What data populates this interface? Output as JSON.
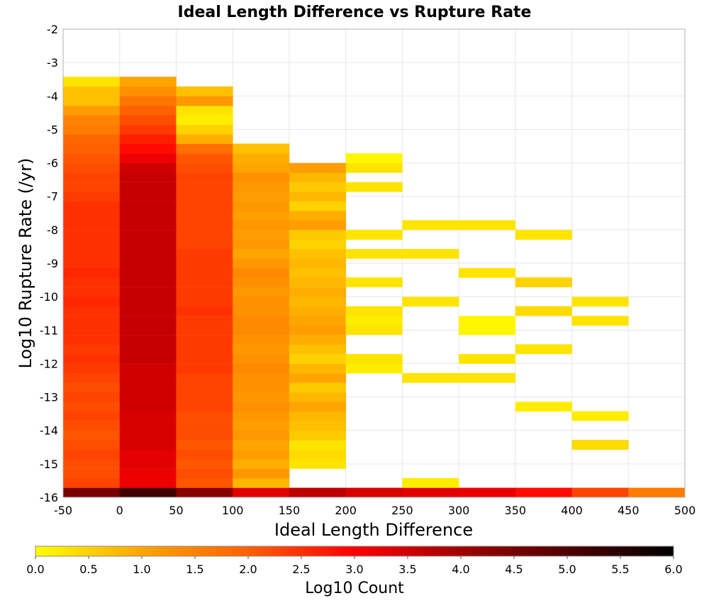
{
  "chart_data": {
    "type": "heatmap",
    "title": "Ideal Length Difference vs Rupture Rate",
    "xlabel": "Ideal Length Difference",
    "ylabel": "Log10 Rupture Rate (/yr)",
    "xlim": [
      -50,
      500
    ],
    "ylim": [
      -16,
      -2
    ],
    "x_ticks": [
      "-50",
      "0",
      "50",
      "100",
      "150",
      "200",
      "250",
      "300",
      "350",
      "400",
      "450",
      "500"
    ],
    "y_ticks": [
      "-2",
      "-3",
      "-4",
      "-5",
      "-6",
      "-7",
      "-8",
      "-9",
      "-10",
      "-11",
      "-12",
      "-13",
      "-14",
      "-15",
      "-16"
    ],
    "grid": true,
    "x_bin_width": 50,
    "y_bin_height": 0.285,
    "colorbar": {
      "label": "Log10 Count",
      "range": [
        0,
        6
      ],
      "ticks": [
        "0.0",
        "0.5",
        "1.0",
        "1.5",
        "2.0",
        "2.5",
        "3.0",
        "3.5",
        "4.0",
        "4.5",
        "5.0",
        "5.5",
        "6.0"
      ],
      "colormap": [
        [
          0.0,
          "#ffff00"
        ],
        [
          1.0,
          "#ffa500"
        ],
        [
          2.0,
          "#ff6000"
        ],
        [
          3.0,
          "#ff0000"
        ],
        [
          4.0,
          "#a00000"
        ],
        [
          5.0,
          "#500000"
        ],
        [
          6.0,
          "#000000"
        ]
      ]
    },
    "columns": [
      {
        "x_start": -50,
        "cells": [
          {
            "y": -16.0,
            "v": 4.5
          },
          {
            "y": -15.71,
            "v": 2.3
          },
          {
            "y": -15.43,
            "v": 2.2
          },
          {
            "y": -15.14,
            "v": 2.2
          },
          {
            "y": -14.86,
            "v": 2.3
          },
          {
            "y": -14.57,
            "v": 2.2
          },
          {
            "y": -14.29,
            "v": 2.1
          },
          {
            "y": -14.0,
            "v": 2.2
          },
          {
            "y": -13.71,
            "v": 2.3
          },
          {
            "y": -13.43,
            "v": 2.2
          },
          {
            "y": -13.14,
            "v": 2.3
          },
          {
            "y": -12.86,
            "v": 2.2
          },
          {
            "y": -12.57,
            "v": 2.3
          },
          {
            "y": -12.29,
            "v": 2.4
          },
          {
            "y": -12.0,
            "v": 2.5
          },
          {
            "y": -11.71,
            "v": 2.4
          },
          {
            "y": -11.43,
            "v": 2.5
          },
          {
            "y": -11.14,
            "v": 2.5
          },
          {
            "y": -10.86,
            "v": 2.5
          },
          {
            "y": -10.57,
            "v": 2.5
          },
          {
            "y": -10.29,
            "v": 2.6
          },
          {
            "y": -10.0,
            "v": 2.5
          },
          {
            "y": -9.71,
            "v": 2.5
          },
          {
            "y": -9.43,
            "v": 2.6
          },
          {
            "y": -9.14,
            "v": 2.5
          },
          {
            "y": -8.86,
            "v": 2.5
          },
          {
            "y": -8.57,
            "v": 2.5
          },
          {
            "y": -8.29,
            "v": 2.5
          },
          {
            "y": -8.0,
            "v": 2.5
          },
          {
            "y": -7.71,
            "v": 2.5
          },
          {
            "y": -7.43,
            "v": 2.5
          },
          {
            "y": -7.14,
            "v": 2.4
          },
          {
            "y": -6.86,
            "v": 2.3
          },
          {
            "y": -6.57,
            "v": 2.3
          },
          {
            "y": -6.29,
            "v": 2.2
          },
          {
            "y": -6.0,
            "v": 2.1
          },
          {
            "y": -5.71,
            "v": 2.0
          },
          {
            "y": -5.43,
            "v": 1.9
          },
          {
            "y": -5.14,
            "v": 1.6
          },
          {
            "y": -4.86,
            "v": 1.5
          },
          {
            "y": -4.57,
            "v": 1.1
          },
          {
            "y": -4.29,
            "v": 0.7
          },
          {
            "y": -4.0,
            "v": 0.7
          },
          {
            "y": -3.71,
            "v": 0.3
          }
        ]
      },
      {
        "x_start": 0,
        "cells": [
          {
            "y": -16.0,
            "v": 5.2
          },
          {
            "y": -15.71,
            "v": 3.2
          },
          {
            "y": -15.43,
            "v": 3.2
          },
          {
            "y": -15.14,
            "v": 3.3
          },
          {
            "y": -14.86,
            "v": 3.3
          },
          {
            "y": -14.57,
            "v": 3.4
          },
          {
            "y": -14.29,
            "v": 3.4
          },
          {
            "y": -14.0,
            "v": 3.4
          },
          {
            "y": -13.71,
            "v": 3.4
          },
          {
            "y": -13.43,
            "v": 3.5
          },
          {
            "y": -13.14,
            "v": 3.5
          },
          {
            "y": -12.86,
            "v": 3.5
          },
          {
            "y": -12.57,
            "v": 3.5
          },
          {
            "y": -12.29,
            "v": 3.5
          },
          {
            "y": -12.0,
            "v": 3.6
          },
          {
            "y": -11.71,
            "v": 3.6
          },
          {
            "y": -11.43,
            "v": 3.6
          },
          {
            "y": -11.14,
            "v": 3.6
          },
          {
            "y": -10.86,
            "v": 3.6
          },
          {
            "y": -10.57,
            "v": 3.6
          },
          {
            "y": -10.29,
            "v": 3.6
          },
          {
            "y": -10.0,
            "v": 3.6
          },
          {
            "y": -9.71,
            "v": 3.6
          },
          {
            "y": -9.43,
            "v": 3.6
          },
          {
            "y": -9.14,
            "v": 3.6
          },
          {
            "y": -8.86,
            "v": 3.6
          },
          {
            "y": -8.57,
            "v": 3.6
          },
          {
            "y": -8.29,
            "v": 3.6
          },
          {
            "y": -8.0,
            "v": 3.6
          },
          {
            "y": -7.71,
            "v": 3.6
          },
          {
            "y": -7.43,
            "v": 3.6
          },
          {
            "y": -7.14,
            "v": 3.6
          },
          {
            "y": -6.86,
            "v": 3.6
          },
          {
            "y": -6.57,
            "v": 3.6
          },
          {
            "y": -6.29,
            "v": 3.5
          },
          {
            "y": -6.0,
            "v": 3.2
          },
          {
            "y": -5.71,
            "v": 2.9
          },
          {
            "y": -5.43,
            "v": 2.7
          },
          {
            "y": -5.14,
            "v": 2.4
          },
          {
            "y": -4.86,
            "v": 2.2
          },
          {
            "y": -4.57,
            "v": 2.0
          },
          {
            "y": -4.29,
            "v": 1.7
          },
          {
            "y": -4.0,
            "v": 1.3
          },
          {
            "y": -3.71,
            "v": 1.0
          }
        ]
      },
      {
        "x_start": 50,
        "cells": [
          {
            "y": -16.0,
            "v": 4.3
          },
          {
            "y": -15.71,
            "v": 2.1
          },
          {
            "y": -15.43,
            "v": 2.2
          },
          {
            "y": -15.14,
            "v": 2.1
          },
          {
            "y": -14.86,
            "v": 2.2
          },
          {
            "y": -14.57,
            "v": 2.1
          },
          {
            "y": -14.29,
            "v": 2.2
          },
          {
            "y": -14.0,
            "v": 2.2
          },
          {
            "y": -13.71,
            "v": 2.2
          },
          {
            "y": -13.43,
            "v": 2.3
          },
          {
            "y": -13.14,
            "v": 2.3
          },
          {
            "y": -12.86,
            "v": 2.3
          },
          {
            "y": -12.57,
            "v": 2.3
          },
          {
            "y": -12.29,
            "v": 2.4
          },
          {
            "y": -12.0,
            "v": 2.4
          },
          {
            "y": -11.71,
            "v": 2.4
          },
          {
            "y": -11.43,
            "v": 2.4
          },
          {
            "y": -11.14,
            "v": 2.4
          },
          {
            "y": -10.86,
            "v": 2.4
          },
          {
            "y": -10.57,
            "v": 2.5
          },
          {
            "y": -10.29,
            "v": 2.4
          },
          {
            "y": -10.0,
            "v": 2.4
          },
          {
            "y": -9.71,
            "v": 2.4
          },
          {
            "y": -9.43,
            "v": 2.4
          },
          {
            "y": -9.14,
            "v": 2.4
          },
          {
            "y": -8.86,
            "v": 2.4
          },
          {
            "y": -8.57,
            "v": 2.3
          },
          {
            "y": -8.29,
            "v": 2.3
          },
          {
            "y": -8.0,
            "v": 2.3
          },
          {
            "y": -7.71,
            "v": 2.3
          },
          {
            "y": -7.43,
            "v": 2.3
          },
          {
            "y": -7.14,
            "v": 2.3
          },
          {
            "y": -6.86,
            "v": 2.3
          },
          {
            "y": -6.57,
            "v": 2.3
          },
          {
            "y": -6.29,
            "v": 2.2
          },
          {
            "y": -6.0,
            "v": 2.1
          },
          {
            "y": -5.71,
            "v": 1.8
          },
          {
            "y": -5.43,
            "v": 0.9
          },
          {
            "y": -5.14,
            "v": 0.5
          },
          {
            "y": -4.86,
            "v": 0.2
          },
          {
            "y": -4.57,
            "v": 0.3
          },
          {
            "y": -4.29,
            "v": 1.2
          },
          {
            "y": -4.0,
            "v": 0.7
          }
        ]
      },
      {
        "x_start": 100,
        "cells": [
          {
            "y": -16.0,
            "v": 3.3
          },
          {
            "y": -15.71,
            "v": 0.8
          },
          {
            "y": -15.43,
            "v": 1.2
          },
          {
            "y": -15.14,
            "v": 0.9
          },
          {
            "y": -14.86,
            "v": 1.1
          },
          {
            "y": -14.57,
            "v": 1.0
          },
          {
            "y": -14.29,
            "v": 1.2
          },
          {
            "y": -14.0,
            "v": 1.1
          },
          {
            "y": -13.71,
            "v": 1.2
          },
          {
            "y": -13.43,
            "v": 1.3
          },
          {
            "y": -13.14,
            "v": 1.2
          },
          {
            "y": -12.86,
            "v": 1.3
          },
          {
            "y": -12.57,
            "v": 1.3
          },
          {
            "y": -12.29,
            "v": 1.4
          },
          {
            "y": -12.0,
            "v": 1.3
          },
          {
            "y": -11.71,
            "v": 1.2
          },
          {
            "y": -11.43,
            "v": 1.3
          },
          {
            "y": -11.14,
            "v": 1.4
          },
          {
            "y": -10.86,
            "v": 1.4
          },
          {
            "y": -10.57,
            "v": 1.3
          },
          {
            "y": -10.29,
            "v": 1.3
          },
          {
            "y": -10.0,
            "v": 1.2
          },
          {
            "y": -9.71,
            "v": 1.3
          },
          {
            "y": -9.43,
            "v": 1.4
          },
          {
            "y": -9.14,
            "v": 1.2
          },
          {
            "y": -8.86,
            "v": 1.0
          },
          {
            "y": -8.57,
            "v": 1.2
          },
          {
            "y": -8.29,
            "v": 1.1
          },
          {
            "y": -8.0,
            "v": 1.2
          },
          {
            "y": -7.71,
            "v": 1.1
          },
          {
            "y": -7.43,
            "v": 1.2
          },
          {
            "y": -7.14,
            "v": 1.1
          },
          {
            "y": -6.86,
            "v": 1.2
          },
          {
            "y": -6.57,
            "v": 1.3
          },
          {
            "y": -6.29,
            "v": 1.0
          },
          {
            "y": -6.0,
            "v": 0.9
          },
          {
            "y": -5.71,
            "v": 0.7
          }
        ]
      },
      {
        "x_start": 150,
        "cells": [
          {
            "y": -16.0,
            "v": 3.7
          },
          {
            "y": -15.14,
            "v": 0.3
          },
          {
            "y": -14.86,
            "v": 0.4
          },
          {
            "y": -14.57,
            "v": 0.3
          },
          {
            "y": -14.29,
            "v": 0.6
          },
          {
            "y": -14.0,
            "v": 0.7
          },
          {
            "y": -13.71,
            "v": 0.8
          },
          {
            "y": -13.43,
            "v": 1.0
          },
          {
            "y": -13.14,
            "v": 0.8
          },
          {
            "y": -12.86,
            "v": 0.6
          },
          {
            "y": -12.57,
            "v": 1.0
          },
          {
            "y": -12.29,
            "v": 0.8
          },
          {
            "y": -12.0,
            "v": 0.5
          },
          {
            "y": -11.71,
            "v": 0.7
          },
          {
            "y": -11.43,
            "v": 0.9
          },
          {
            "y": -11.14,
            "v": 1.1
          },
          {
            "y": -10.86,
            "v": 1.0
          },
          {
            "y": -10.57,
            "v": 0.9
          },
          {
            "y": -10.29,
            "v": 0.8
          },
          {
            "y": -10.0,
            "v": 0.9
          },
          {
            "y": -9.71,
            "v": 0.8
          },
          {
            "y": -9.43,
            "v": 0.7
          },
          {
            "y": -9.14,
            "v": 0.8
          },
          {
            "y": -8.86,
            "v": 0.7
          },
          {
            "y": -8.57,
            "v": 0.5
          },
          {
            "y": -8.29,
            "v": 0.6
          },
          {
            "y": -8.0,
            "v": 1.1
          },
          {
            "y": -7.71,
            "v": 0.9
          },
          {
            "y": -7.43,
            "v": 0.5
          },
          {
            "y": -7.14,
            "v": 0.8
          },
          {
            "y": -6.86,
            "v": 0.6
          },
          {
            "y": -6.57,
            "v": 0.8
          },
          {
            "y": -6.29,
            "v": 1.1
          }
        ]
      },
      {
        "x_start": 200,
        "cells": [
          {
            "y": -16.0,
            "v": 3.4
          },
          {
            "y": -12.29,
            "v": 0.2
          },
          {
            "y": -12.0,
            "v": 0.3
          },
          {
            "y": -11.14,
            "v": 0.3
          },
          {
            "y": -10.86,
            "v": 0.2
          },
          {
            "y": -10.57,
            "v": 0.3
          },
          {
            "y": -9.71,
            "v": 0.3
          },
          {
            "y": -8.86,
            "v": 0.3
          },
          {
            "y": -8.29,
            "v": 0.3
          },
          {
            "y": -6.86,
            "v": 0.3
          },
          {
            "y": -6.29,
            "v": 0.3
          },
          {
            "y": -6.0,
            "v": 0.1
          }
        ]
      },
      {
        "x_start": 250,
        "cells": [
          {
            "y": -16.0,
            "v": 3.3
          },
          {
            "y": -15.71,
            "v": 0.2
          },
          {
            "y": -12.57,
            "v": 0.3
          },
          {
            "y": -10.29,
            "v": 0.3
          },
          {
            "y": -8.86,
            "v": 0.3
          },
          {
            "y": -8.0,
            "v": 0.3
          }
        ]
      },
      {
        "x_start": 300,
        "cells": [
          {
            "y": -16.0,
            "v": 3.2
          },
          {
            "y": -12.57,
            "v": 0.3
          },
          {
            "y": -12.0,
            "v": 0.3
          },
          {
            "y": -11.14,
            "v": 0.1
          },
          {
            "y": -10.86,
            "v": 0.1
          },
          {
            "y": -9.43,
            "v": 0.3
          },
          {
            "y": -8.0,
            "v": 0.3
          }
        ]
      },
      {
        "x_start": 350,
        "cells": [
          {
            "y": -16.0,
            "v": 2.9
          },
          {
            "y": -13.43,
            "v": 0.2
          },
          {
            "y": -11.71,
            "v": 0.3
          },
          {
            "y": -10.57,
            "v": 0.4
          },
          {
            "y": -9.71,
            "v": 0.5
          },
          {
            "y": -8.29,
            "v": 0.3
          }
        ]
      },
      {
        "x_start": 400,
        "cells": [
          {
            "y": -16.0,
            "v": 2.3
          },
          {
            "y": -14.57,
            "v": 0.4
          },
          {
            "y": -13.71,
            "v": 0.2
          },
          {
            "y": -10.86,
            "v": 0.3
          },
          {
            "y": -10.29,
            "v": 0.3
          }
        ]
      },
      {
        "x_start": 450,
        "cells": [
          {
            "y": -16.0,
            "v": 1.6
          }
        ]
      }
    ]
  }
}
